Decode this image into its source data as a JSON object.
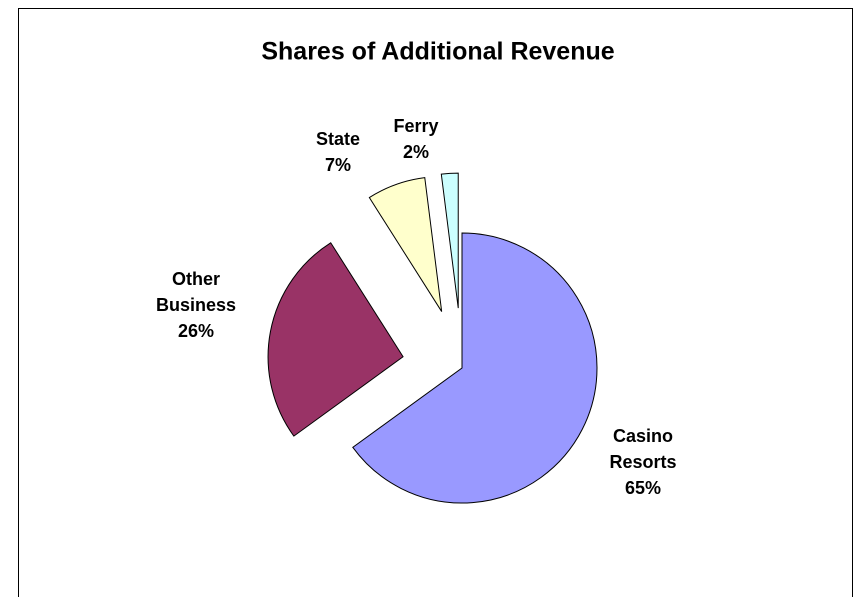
{
  "chart_data": {
    "type": "pie",
    "title": "Shares of Additional Revenue",
    "categories": [
      "Casino Resorts",
      "Other Business",
      "State",
      "Ferry"
    ],
    "values": [
      65,
      26,
      7,
      2
    ],
    "value_labels": [
      "65%",
      "26%",
      "7%",
      "2%"
    ],
    "colors": [
      "#9999ff",
      "#993366",
      "#ffffcc",
      "#ccffff"
    ],
    "exploded": [
      false,
      true,
      true,
      true
    ]
  }
}
